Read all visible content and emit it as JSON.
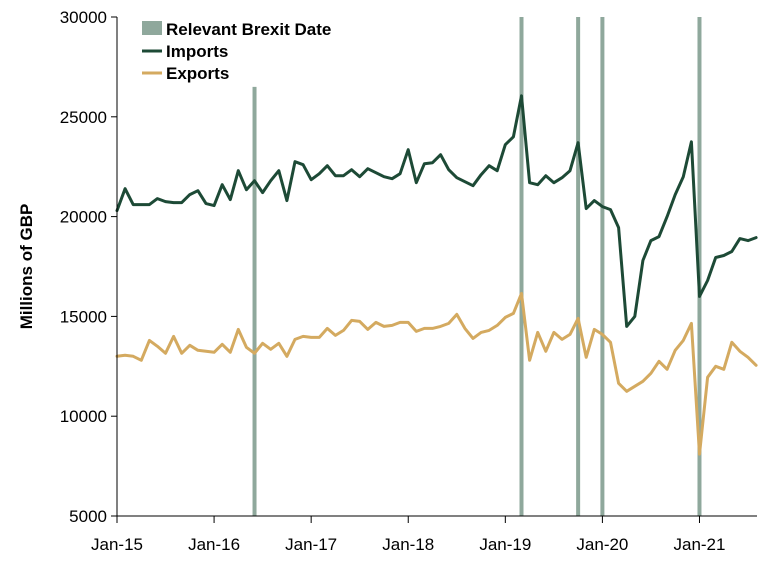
{
  "chart_data": {
    "type": "line",
    "title": "",
    "xlabel": "",
    "ylabel": "Millions of GBP",
    "ylim": [
      5000,
      30000
    ],
    "yticks": [
      5000,
      10000,
      15000,
      20000,
      25000,
      30000
    ],
    "x_start": "Jan-15",
    "x_tick_labels": [
      "Jan-15",
      "Jan-16",
      "Jan-17",
      "Jan-18",
      "Jan-19",
      "Jan-20",
      "Jan-21"
    ],
    "x_tick_index": [
      0,
      12,
      24,
      36,
      48,
      60,
      72
    ],
    "legend_position": "top-left",
    "grid": false,
    "markers": {
      "name": "Relevant Brexit Date",
      "color": "#8fa89c",
      "dates": [
        "Jun-16",
        "Mar-19",
        "Oct-19",
        "Jan-20",
        "Jan-21"
      ],
      "index": [
        17,
        50,
        57,
        60,
        72
      ]
    },
    "series": [
      {
        "name": "Imports",
        "color": "#1d4a36",
        "values": [
          20300,
          21400,
          20600,
          20600,
          20600,
          20900,
          20750,
          20700,
          20700,
          21100,
          21300,
          20650,
          20550,
          21600,
          20850,
          22300,
          21350,
          21800,
          21200,
          21800,
          22300,
          20800,
          22750,
          22600,
          21850,
          22150,
          22550,
          22050,
          22050,
          22350,
          22000,
          22400,
          22200,
          22000,
          21900,
          22150,
          23350,
          21700,
          22650,
          22700,
          23100,
          22350,
          21950,
          21750,
          21550,
          22100,
          22550,
          22300,
          23600,
          24000,
          26050,
          21700,
          21600,
          22050,
          21700,
          21950,
          22300,
          23700,
          20400,
          20800,
          20500,
          20350,
          19450,
          14500,
          15000,
          17800,
          18800,
          19000,
          20000,
          21100,
          22000,
          23750,
          16000,
          16800,
          17950,
          18050,
          18250,
          18900,
          18800,
          18950
        ]
      },
      {
        "name": "Exports",
        "color": "#d4aa60",
        "values": [
          13000,
          13050,
          13000,
          12800,
          13800,
          13500,
          13150,
          14000,
          13150,
          13550,
          13300,
          13250,
          13200,
          13600,
          13200,
          14350,
          13450,
          13150,
          13650,
          13350,
          13650,
          13000,
          13850,
          14000,
          13950,
          13950,
          14400,
          14050,
          14300,
          14800,
          14750,
          14350,
          14700,
          14500,
          14550,
          14700,
          14700,
          14250,
          14400,
          14400,
          14500,
          14650,
          15100,
          14400,
          13900,
          14200,
          14300,
          14550,
          14950,
          15150,
          16150,
          12800,
          14200,
          13250,
          14200,
          13850,
          14100,
          14900,
          12950,
          14350,
          14100,
          13700,
          11650,
          11250,
          11500,
          11750,
          12150,
          12750,
          12350,
          13300,
          13800,
          14650,
          8100,
          11950,
          12500,
          12350,
          13700,
          13250,
          12950,
          12550
        ]
      }
    ]
  }
}
